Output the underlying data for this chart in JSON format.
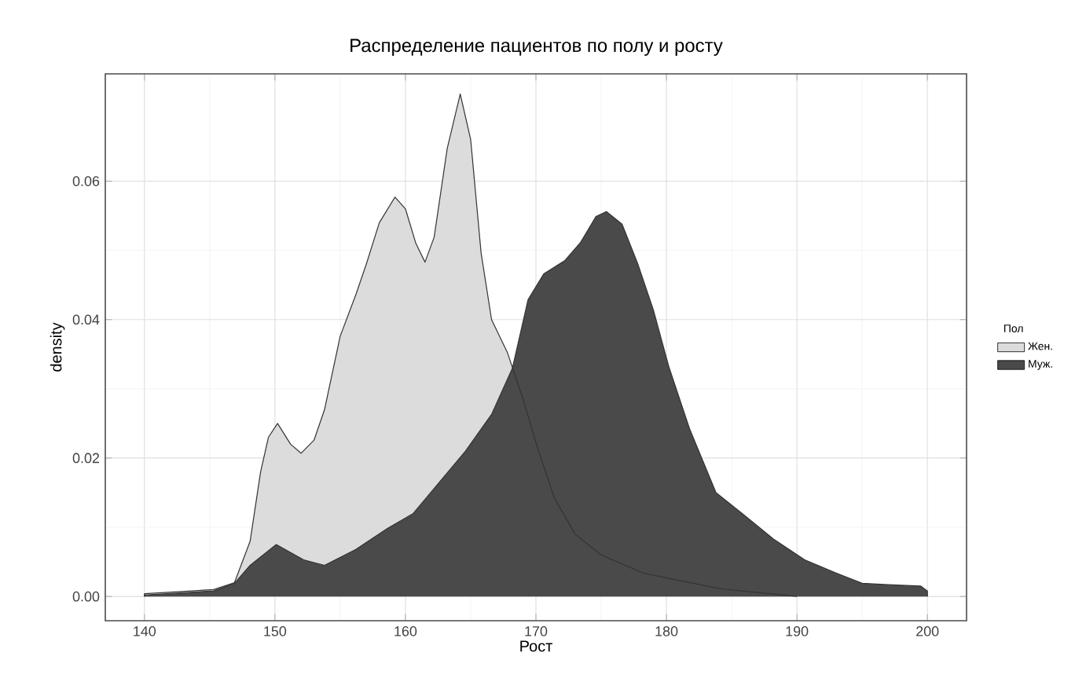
{
  "chart_data": {
    "type": "area",
    "title": "Распределение пациентов по полу и росту",
    "xlabel": "Рост",
    "ylabel": "density",
    "legend_title": "Пол",
    "xlim": [
      137,
      203
    ],
    "ylim": [
      -0.0035,
      0.0755
    ],
    "xticks": [
      140,
      150,
      160,
      170,
      180,
      190,
      200
    ],
    "yticks": [
      {
        "value": 0,
        "label": "0.00"
      },
      {
        "value": 0.02,
        "label": "0.02"
      },
      {
        "value": 0.04,
        "label": "0.04"
      },
      {
        "value": 0.06,
        "label": "0.06"
      }
    ],
    "grid": true,
    "legend": "right",
    "series": [
      {
        "name": "Жен.",
        "color": "#dcdcdc",
        "x": [
          140,
          145.3,
          146.9,
          148.1,
          148.9,
          149.5,
          150.2,
          151.2,
          152,
          153,
          153.8,
          155,
          156.2,
          157,
          158,
          159.2,
          160,
          160.8,
          161.5,
          162.2,
          163.2,
          164.2,
          165,
          165.8,
          166.6,
          167.8,
          169,
          170.2,
          171.4,
          173,
          175,
          178.2,
          181,
          184.2,
          189,
          190
        ],
        "values": [
          0.0004,
          0.001,
          0.002,
          0.008,
          0.018,
          0.023,
          0.025,
          0.022,
          0.0207,
          0.0226,
          0.027,
          0.0376,
          0.0436,
          0.048,
          0.054,
          0.0577,
          0.056,
          0.051,
          0.0483,
          0.0519,
          0.0647,
          0.0726,
          0.066,
          0.0496,
          0.04,
          0.0353,
          0.0286,
          0.021,
          0.0143,
          0.009,
          0.006,
          0.0034,
          0.0023,
          0.0011,
          0.0002,
          0
        ]
      },
      {
        "name": "Муж.",
        "color": "#4a4a4a",
        "x": [
          140,
          145.3,
          146.9,
          148.1,
          150.1,
          152.2,
          153.8,
          156.2,
          158.6,
          160.6,
          162.6,
          164.6,
          166.6,
          168.2,
          169.4,
          170.6,
          172.2,
          173.4,
          174.6,
          175.4,
          176.6,
          177.8,
          179,
          180.2,
          181.8,
          183.8,
          185.8,
          188.2,
          190.6,
          193,
          195,
          197,
          199.5,
          200
        ],
        "values": [
          0.0002,
          0.0008,
          0.0019,
          0.0045,
          0.0075,
          0.0053,
          0.0045,
          0.0068,
          0.0098,
          0.012,
          0.0165,
          0.021,
          0.0263,
          0.033,
          0.0429,
          0.0466,
          0.0485,
          0.0511,
          0.0549,
          0.0556,
          0.0538,
          0.0481,
          0.0414,
          0.0331,
          0.0241,
          0.015,
          0.012,
          0.0083,
          0.0053,
          0.0034,
          0.0019,
          0.0017,
          0.0015,
          0.0008
        ]
      }
    ]
  }
}
